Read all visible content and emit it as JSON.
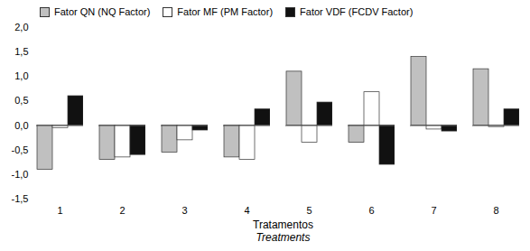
{
  "chart_data": {
    "type": "bar",
    "categories": [
      1,
      2,
      3,
      4,
      5,
      6,
      7,
      8
    ],
    "series": [
      {
        "name": "Fator QN (NQ Factor)",
        "color": "#c0c0c0",
        "values": [
          -0.9,
          -0.7,
          -0.55,
          -0.65,
          1.1,
          -0.35,
          1.4,
          1.15
        ]
      },
      {
        "name": "Fator MF (PM Factor)",
        "color": "#ffffff",
        "values": [
          -0.05,
          -0.65,
          -0.3,
          -0.7,
          -0.35,
          0.68,
          -0.08,
          -0.03
        ]
      },
      {
        "name": "Fator VDF (FCDV Factor)",
        "color": "#111111",
        "values": [
          0.6,
          -0.6,
          -0.1,
          0.33,
          0.47,
          -0.8,
          -0.12,
          0.33
        ]
      }
    ],
    "xlabel": [
      "Tratamentos",
      "Treatments"
    ],
    "ylim": [
      -1.5,
      2.0
    ],
    "yticks": [
      {
        "value": -1.5,
        "label": "-1,5"
      },
      {
        "value": -1.0,
        "label": "-1,0"
      },
      {
        "value": -0.5,
        "label": "-0,5"
      },
      {
        "value": 0.0,
        "label": "0,0"
      },
      {
        "value": 0.5,
        "label": "0,5"
      },
      {
        "value": 1.0,
        "label": "1,0"
      },
      {
        "value": 1.5,
        "label": "1,5"
      },
      {
        "value": 2.0,
        "label": "2,0"
      }
    ],
    "grid": false,
    "legend": "upper left"
  }
}
